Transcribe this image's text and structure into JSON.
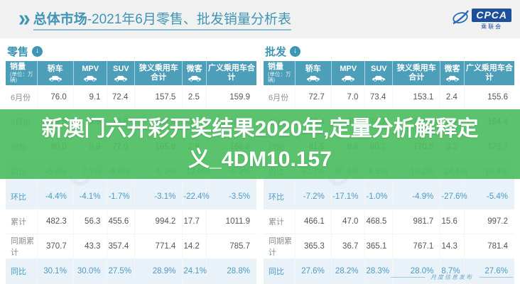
{
  "header": {
    "title_bold": "总体市场",
    "title_rest": "-2021年6月零售、批发销量分析表",
    "logo_text": "CPCA",
    "logo_subtext": "乘联会"
  },
  "columns": [
    {
      "label": "销量",
      "sub": "(单位：万辆)"
    },
    {
      "label": "轿车",
      "icon": "sedan-icon"
    },
    {
      "label": "MPV",
      "icon": "mpv-icon"
    },
    {
      "label": "SUV",
      "icon": "suv-icon"
    },
    {
      "label": "狭义乘用车合计"
    },
    {
      "label": "微客",
      "icon": "minibus-icon"
    },
    {
      "label": "广义乘用车合计"
    }
  ],
  "tables": [
    {
      "section": "零售",
      "rows": [
        {
          "label": "6月份",
          "type": "val",
          "values": [
            "76.0",
            "9.1",
            "72.4",
            "157.5",
            "2.5",
            "159.9"
          ]
        },
        {
          "label": "5月份",
          "type": "val shade",
          "values": [
            "79.5",
            "9.5",
            "73.6",
            "162.6",
            "3.2",
            "165.7"
          ]
        },
        {
          "label": "同期",
          "type": "val",
          "values": [
            "80.0",
            "8.9",
            "77.0",
            "165.9",
            "2.9",
            "168.8"
          ]
        },
        {
          "label": "同比",
          "type": "pct",
          "values": [
            "-5.0%",
            "2.1%",
            "-6.0%",
            "-5.1%",
            "-13.8%",
            "-5.3%"
          ]
        },
        {
          "label": "环比",
          "type": "pct",
          "values": [
            "-4.4%",
            "-4.1%",
            "-1.7%",
            "-3.1%",
            "-22.4%",
            "-3.5%"
          ]
        },
        {
          "label": "累计",
          "type": "val",
          "values": [
            "482.3",
            "56.3",
            "455.6",
            "994.2",
            "17.7",
            "1011.9"
          ]
        },
        {
          "label": "同期累计",
          "type": "val",
          "values": [
            "370.7",
            "43.3",
            "357.4",
            "771.4",
            "14.2",
            "785.7"
          ]
        },
        {
          "label": "同比",
          "type": "pct",
          "values": [
            "30.1%",
            "30.0%",
            "27.5%",
            "28.9%",
            "24.1%",
            "28.8%"
          ]
        }
      ]
    },
    {
      "section": "批发",
      "rows": [
        {
          "label": "6月份",
          "type": "val",
          "values": [
            "72.7",
            "7.0",
            "73.4",
            "153.1",
            "2.4",
            "155.6"
          ]
        },
        {
          "label": "5月份",
          "type": "val shade",
          "values": [
            "78.4",
            "8.4",
            "74.2",
            "161.0",
            "3.4",
            "164.4"
          ]
        },
        {
          "label": "同期",
          "type": "val",
          "values": [
            "81.5",
            "8.8",
            "80.2",
            "170.5",
            "3.2",
            "173.7"
          ]
        },
        {
          "label": "同比",
          "type": "pct",
          "values": [
            "-10.7%",
            "-20.4%",
            "-8.5%",
            "-10.2%",
            "-24.6%",
            "-10.4%"
          ]
        },
        {
          "label": "环比",
          "type": "pct",
          "values": [
            "-7.2%",
            "-17.1%",
            "-1.0%",
            "-4.9%",
            "-27.6%",
            "-5.4%"
          ]
        },
        {
          "label": "累计",
          "type": "val",
          "values": [
            "466.1",
            "47.0",
            "468.5",
            "981.7",
            "15.6",
            "997.2"
          ]
        },
        {
          "label": "同期累计",
          "type": "val",
          "values": [
            "365.3",
            "36.7",
            "365.1",
            "767.1",
            "14.3",
            "781.4"
          ]
        },
        {
          "label": "同比",
          "type": "pct",
          "values": [
            "27.6%",
            "28.2%",
            "28.3%",
            "28.0%",
            "8.7%",
            "27.6%"
          ]
        }
      ]
    }
  ],
  "overlay": {
    "line1": "新澳门六开彩开奖结果2020年,定量分析解释定",
    "line2": "义_4DM10.157"
  },
  "footer": {
    "note": "月度信息发布"
  },
  "watermark": "CPCA",
  "colors": {
    "accent": "#3f96b4",
    "header_bg": "#4d9fb9",
    "pct_text": "#4a9cc4",
    "pct_row_bg": "#e9f2f8",
    "overlay_green": "#4dbd61",
    "logo_blue": "#1d4f9b"
  }
}
